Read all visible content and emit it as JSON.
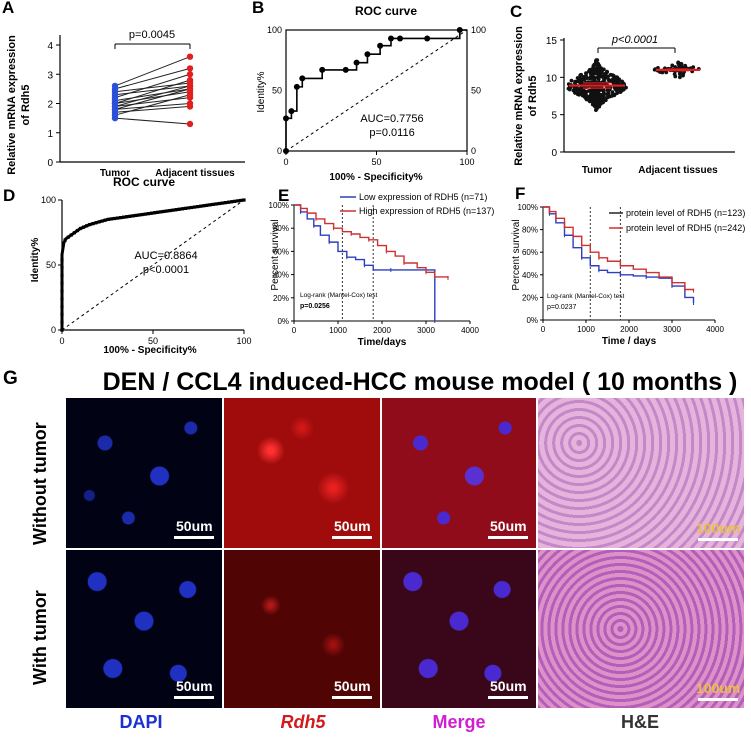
{
  "panels": {
    "A": {
      "label": "A",
      "pvalue": "p=0.0045",
      "ylabel_1": "Relative mRNA expression",
      "ylabel_2": "of Rdh5",
      "x_tumor": "Tumor",
      "x_adjacent": "Adjacent  tissues"
    },
    "B": {
      "label": "B",
      "title": "ROC curve",
      "auc": "AUC=0.7756",
      "p": "p=0.0116",
      "ylabel": "Identity%",
      "xlabel": "100% - Specificity%"
    },
    "C": {
      "label": "C",
      "pvalue": "p<0.0001",
      "ylabel_1": "Relative mRNA expression",
      "ylabel_2": "of Rdh5",
      "x_tumor": "Tumor",
      "x_adjacent": "Adjacent tissues"
    },
    "D": {
      "label": "D",
      "title": "ROC curve",
      "auc": "AUC=0.8864",
      "p": "p<0.0001",
      "ylabel": "Identity%",
      "xlabel": "100% - Specificity%"
    },
    "E": {
      "label": "E",
      "legend_low": "Low expression of RDH5  (n=71)",
      "legend_high": "High expression of RDH5 (n=137)",
      "test": "Log-rank (Mantel-Cox) test",
      "p": "p=0.0256",
      "ylabel": "Percent survival",
      "xlabel": "Time/days",
      "color_low": "#2b3fbf",
      "color_high": "#d03030"
    },
    "F": {
      "label": "F",
      "legend_black": "protein level of RDH5 (n=123)",
      "legend_red": "protein level of RDH5 (n=242)",
      "test": "Log-rank (Mantel-Cox) test",
      "p": "p=0.0237",
      "ylabel": "Percent survival",
      "xlabel": "Time / days"
    },
    "G": {
      "label": "G",
      "title": "DEN / CCL4 induced-HCC mouse model ( 10 months )",
      "row1": "Without  tumor",
      "row2": "With tumor",
      "scale_50": "50um",
      "scale_100": "100um",
      "col_dapi": "DAPI",
      "col_rdh5": "Rdh5",
      "col_merge": "Merge",
      "col_he": "H&E",
      "color_dapi": "#1c2fd0",
      "color_rdh5": "#d01c1c",
      "color_merge": "#d21ed2"
    }
  },
  "chart_data": [
    {
      "panel": "A",
      "type": "scatter",
      "categories": [
        "Tumor",
        "Adjacent  tissues"
      ],
      "ylim": [
        0,
        4
      ],
      "yticks": [
        0,
        1,
        2,
        3,
        4
      ],
      "pairs": [
        [
          2.6,
          3.6
        ],
        [
          2.5,
          3.2
        ],
        [
          2.4,
          2.7
        ],
        [
          2.3,
          2.6
        ],
        [
          2.2,
          3.0
        ],
        [
          2.1,
          2.5
        ],
        [
          2.0,
          2.4
        ],
        [
          1.9,
          2.6
        ],
        [
          1.9,
          2.2
        ],
        [
          1.8,
          2.0
        ],
        [
          1.7,
          1.9
        ],
        [
          1.6,
          2.3
        ],
        [
          1.5,
          1.3
        ],
        [
          2.0,
          2.8
        ],
        [
          1.8,
          2.5
        ]
      ],
      "xlabel": "",
      "ylabel": "Relative mRNA expression of Rdh5"
    },
    {
      "panel": "B",
      "type": "line",
      "title": "ROC curve",
      "x": [
        0,
        0,
        3,
        3,
        6,
        6,
        9,
        9,
        20,
        20,
        33,
        33,
        39,
        39,
        45,
        45,
        52,
        52,
        58,
        58,
        63,
        63,
        78,
        78,
        96,
        96,
        100
      ],
      "y": [
        0,
        27,
        27,
        33,
        33,
        53,
        53,
        60,
        60,
        67,
        67,
        67,
        67,
        73,
        73,
        80,
        80,
        87,
        87,
        93,
        93,
        93,
        93,
        93,
        93,
        100,
        100
      ],
      "xlim": [
        0,
        100
      ],
      "ylim": [
        0,
        100
      ],
      "xticks": [
        0,
        50,
        100
      ],
      "yticks": [
        0,
        50,
        100
      ],
      "xlabel": "100% - Specificity%",
      "ylabel": "Identity%"
    },
    {
      "panel": "C",
      "type": "scatter",
      "categories": [
        "Tumor",
        "Adjacent tissues"
      ],
      "ylim": [
        0,
        15
      ],
      "yticks": [
        0,
        5,
        10,
        15
      ],
      "tumor_mean": 8.9,
      "tumor_sd": 1.4,
      "tumor_min": 4.5,
      "tumor_max": 12.3,
      "adjacent_mean": 11.0,
      "adjacent_sd": 0.5,
      "adjacent_min": 9.8,
      "adjacent_max": 12.0,
      "n_tumor": 371,
      "n_adjacent": 50,
      "xlabel": "",
      "ylabel": "Relative mRNA expression of Rdh5"
    },
    {
      "panel": "D",
      "type": "line",
      "title": "ROC curve",
      "x": [
        0,
        0,
        1,
        2,
        4,
        6,
        8,
        10,
        15,
        20,
        25,
        30,
        35,
        40,
        50,
        60,
        70,
        80,
        90,
        95,
        100
      ],
      "y": [
        0,
        58,
        67,
        70,
        72,
        74,
        76,
        78,
        81,
        83,
        85,
        86,
        87,
        88,
        90,
        92,
        94,
        96,
        98,
        99,
        100
      ],
      "xlim": [
        0,
        100
      ],
      "ylim": [
        0,
        100
      ],
      "xticks": [
        0,
        50,
        100
      ],
      "yticks": [
        0,
        50,
        100
      ],
      "xlabel": "100% - Specificity%",
      "ylabel": "Identity%"
    },
    {
      "panel": "E",
      "type": "line",
      "xlim": [
        0,
        4000
      ],
      "ylim": [
        0,
        100
      ],
      "xticks": [
        0,
        1000,
        2000,
        3000,
        4000
      ],
      "yticks": [
        0,
        20,
        40,
        60,
        80,
        100
      ],
      "series": [
        {
          "name": "Low expression of RDH5  (n=71)",
          "x": [
            0,
            150,
            300,
            450,
            600,
            800,
            1000,
            1200,
            1400,
            1600,
            1800,
            2200,
            2600,
            3000,
            3200,
            3200
          ],
          "y": [
            100,
            94,
            88,
            82,
            74,
            68,
            60,
            55,
            53,
            48,
            44,
            44,
            44,
            44,
            44,
            0
          ]
        },
        {
          "name": "High expression of RDH5 (n=137)",
          "x": [
            0,
            150,
            300,
            500,
            700,
            900,
            1100,
            1300,
            1500,
            1700,
            1900,
            2100,
            2300,
            2500,
            2800,
            3000,
            3200,
            3500
          ],
          "y": [
            100,
            97,
            93,
            88,
            84,
            80,
            77,
            75,
            72,
            70,
            65,
            60,
            56,
            50,
            46,
            42,
            38,
            37
          ]
        }
      ],
      "vlines": [
        1100,
        1800
      ],
      "xlabel": "Time/days",
      "ylabel": "Percent survival"
    },
    {
      "panel": "F",
      "type": "line",
      "xlim": [
        0,
        4000
      ],
      "ylim": [
        0,
        100
      ],
      "xticks": [
        0,
        1000,
        2000,
        3000,
        4000
      ],
      "yticks": [
        0,
        20,
        40,
        60,
        80,
        100
      ],
      "series": [
        {
          "name": "protein level of RDH5 (n=123)",
          "x": [
            0,
            150,
            300,
            500,
            700,
            900,
            1100,
            1300,
            1500,
            1800,
            2100,
            2400,
            2700,
            3000,
            3300,
            3500
          ],
          "y": [
            100,
            94,
            86,
            75,
            64,
            55,
            48,
            44,
            42,
            40,
            39,
            38,
            37,
            30,
            20,
            15
          ]
        },
        {
          "name": "protein level of RDH5 (n=242)",
          "x": [
            0,
            150,
            300,
            500,
            700,
            900,
            1100,
            1300,
            1500,
            1800,
            2100,
            2400,
            2700,
            3000,
            3300,
            3500
          ],
          "y": [
            100,
            96,
            90,
            82,
            74,
            66,
            60,
            55,
            52,
            48,
            45,
            42,
            38,
            33,
            27,
            26
          ]
        }
      ],
      "vlines": [
        1100,
        1800
      ],
      "xlabel": "Time / days",
      "ylabel": "Percent survival"
    }
  ]
}
